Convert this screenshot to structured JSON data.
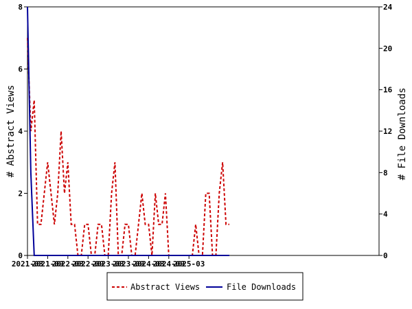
{
  "chart_data": {
    "type": "line",
    "ylabel_left": "# Abstract Views",
    "ylabel_right": "# File Downloads",
    "xlabel": "",
    "x_ticks": [
      "2021-03",
      "2021-09",
      "2022-03",
      "2022-09",
      "2023-03",
      "2023-09",
      "2024-03",
      "2024-09",
      "2025-03"
    ],
    "x_start": "2021-03",
    "ylim_left": [
      0,
      8
    ],
    "yticks_left": [
      "0",
      "2",
      "4",
      "6",
      "8"
    ],
    "ylim_right": [
      0,
      24
    ],
    "yticks_right": [
      "0",
      "4",
      "8",
      "12",
      "16",
      "20",
      "24"
    ],
    "grid": false,
    "legend_position": "bottom",
    "series": [
      {
        "name": "Abstract Views",
        "axis": "left",
        "color": "#cc0000",
        "style": "dashed",
        "values": [
          7,
          4,
          5,
          1,
          1,
          2,
          3,
          2,
          1,
          2,
          4,
          2,
          3,
          1,
          1,
          0,
          0,
          1,
          1,
          0,
          0,
          1,
          1,
          0,
          0,
          2,
          3,
          0,
          0,
          1,
          1,
          0,
          0,
          1,
          2,
          1,
          1,
          0,
          2,
          1,
          1,
          2,
          0,
          0,
          0,
          0,
          0,
          0,
          0,
          0,
          1,
          0,
          0,
          2,
          2,
          0,
          0,
          2,
          3,
          1,
          1
        ]
      },
      {
        "name": "File Downloads",
        "axis": "right",
        "color": "#000099",
        "style": "solid",
        "values": [
          24,
          8,
          0,
          0,
          0,
          0,
          0,
          0,
          0,
          0,
          0,
          0,
          0,
          0,
          0,
          0,
          0,
          0,
          0,
          0,
          0,
          0,
          0,
          0,
          0,
          0,
          0,
          0,
          0,
          0,
          0,
          0,
          0,
          0,
          0,
          0,
          0,
          0,
          0,
          0,
          0,
          0,
          0,
          0,
          0,
          0,
          0,
          0,
          0,
          0,
          0,
          0,
          0,
          0,
          0,
          0,
          0,
          0,
          0,
          0,
          0
        ]
      }
    ]
  }
}
